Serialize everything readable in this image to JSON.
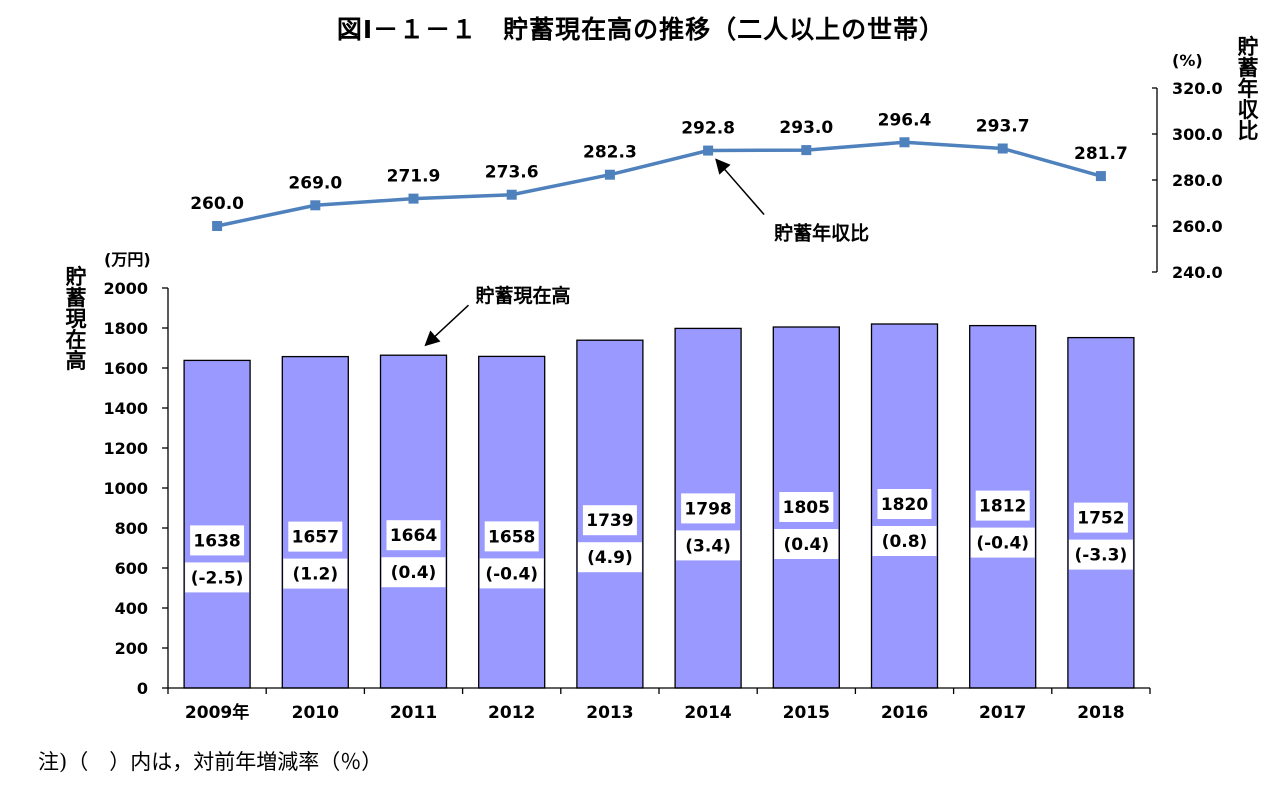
{
  "title": "図Ⅰ－１－１　貯蓄現在高の推移（二人以上の世帯）",
  "footnote": "注)（　）内は，対前年増減率（％）",
  "chart_data": {
    "type": "bar",
    "title": "図Ⅰ－１－１　貯蓄現在高の推移（二人以上の世帯）",
    "categories": [
      "2009年",
      "2010",
      "2011",
      "2012",
      "2013",
      "2014",
      "2015",
      "2016",
      "2017",
      "2018"
    ],
    "bar_series": {
      "name": "貯蓄現在高",
      "values": [
        1638,
        1657,
        1664,
        1658,
        1739,
        1798,
        1805,
        1820,
        1812,
        1752
      ],
      "change_labels": [
        "(-2.5)",
        "(1.2)",
        "(0.4)",
        "(-0.4)",
        "(4.9)",
        "(3.4)",
        "(0.4)",
        "(0.8)",
        "(-0.4)",
        "(-3.3)"
      ],
      "color": "#9999FF"
    },
    "line_series": {
      "name": "貯蓄年収比",
      "values": [
        260.0,
        269.0,
        271.9,
        273.6,
        282.3,
        292.8,
        293.0,
        296.4,
        293.7,
        281.7
      ],
      "labels": [
        "260.0",
        "269.0",
        "271.9",
        "273.6",
        "282.3",
        "292.8",
        "293.0",
        "296.4",
        "293.7",
        "281.7"
      ],
      "color": "#4F81BD"
    },
    "left_axis": {
      "label": "貯蓄現在高",
      "unit": "(万円)",
      "ylim": [
        0,
        2000
      ],
      "ticks": [
        "0",
        "200",
        "400",
        "600",
        "800",
        "1000",
        "1200",
        "1400",
        "1600",
        "1800",
        "2000"
      ]
    },
    "right_axis": {
      "label": "貯蓄年収比",
      "unit": "(%)",
      "ylim": [
        240,
        320
      ],
      "ticks": [
        "240.0",
        "260.0",
        "280.0",
        "300.0",
        "320.0"
      ]
    },
    "annotations": [
      {
        "text": "貯蓄現在高",
        "target": "bar",
        "index": 2
      },
      {
        "text": "貯蓄年収比",
        "target": "line",
        "index": 5
      }
    ],
    "grid": false
  }
}
